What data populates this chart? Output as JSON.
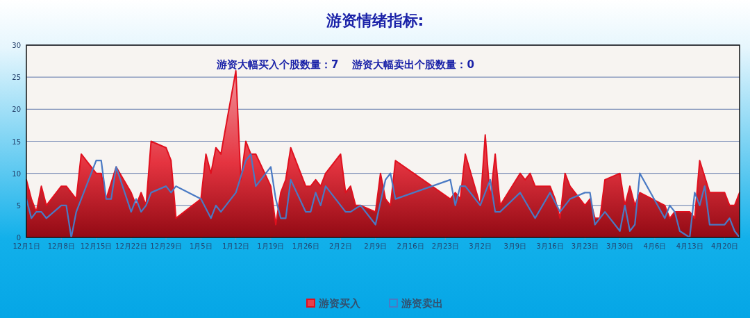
{
  "chart_data": {
    "type": "area",
    "title": "游资情绪指标:",
    "annotations": [
      "游资大幅买入个股数量：7",
      "游资大幅卖出个股数量：0"
    ],
    "categories": [
      "12月1日",
      null,
      null,
      null,
      null,
      null,
      null,
      "12月8日",
      null,
      null,
      null,
      null,
      null,
      null,
      "12月15日",
      null,
      null,
      null,
      null,
      null,
      null,
      "12月22日",
      null,
      null,
      null,
      null,
      null,
      null,
      "12月29日",
      null,
      null,
      null,
      null,
      null,
      null,
      "1月5日",
      null,
      null,
      null,
      null,
      null,
      null,
      "1月12日",
      null,
      null,
      null,
      null,
      null,
      null,
      "1月19日",
      null,
      null,
      null,
      null,
      null,
      null,
      "1月26日",
      null,
      null,
      null,
      null,
      null,
      null,
      "2月2日",
      null,
      null,
      null,
      null,
      null,
      null,
      "2月9日",
      null,
      null,
      null,
      null,
      null,
      null,
      "2月16日",
      null,
      null,
      null,
      null,
      null,
      null,
      "2月23日",
      null,
      null,
      null,
      null,
      null,
      null,
      "3月2日",
      null,
      null,
      null,
      null,
      null,
      null,
      "3月9日",
      null,
      null,
      null,
      null,
      null,
      null,
      "3月16日",
      null,
      null,
      null,
      null,
      null,
      null,
      "3月23日",
      null,
      null,
      null,
      null,
      null,
      null,
      "3月30日",
      null,
      null,
      null,
      null,
      null,
      null,
      "4月6日",
      null,
      null,
      null,
      null,
      null,
      null,
      "4月13日",
      null,
      null,
      null,
      null,
      null,
      null,
      "4月20日",
      null,
      null,
      null
    ],
    "ylim": [
      0,
      30
    ],
    "yticks": [
      0,
      5,
      10,
      15,
      20,
      25,
      30
    ],
    "grid": "y",
    "legend": "bottom",
    "series": [
      {
        "name": "游资买入",
        "color": "#e0101e",
        "values": [
          9,
          6,
          4,
          8,
          5,
          null,
          null,
          8,
          8,
          null,
          6,
          13,
          null,
          null,
          10,
          10,
          6,
          null,
          11,
          null,
          null,
          7,
          5,
          7,
          5,
          15,
          null,
          null,
          14,
          12,
          3,
          null,
          null,
          null,
          null,
          6,
          13,
          10,
          14,
          13,
          null,
          null,
          26,
          9,
          15,
          13,
          13,
          null,
          null,
          8,
          2,
          7,
          9,
          14,
          null,
          null,
          8,
          8,
          9,
          8,
          10,
          null,
          null,
          13,
          7,
          8,
          5,
          5,
          null,
          null,
          4,
          10,
          6,
          5,
          12,
          null,
          null,
          null,
          null,
          null,
          null,
          null,
          null,
          null,
          null,
          6,
          7,
          6,
          13,
          null,
          null,
          5,
          16,
          6,
          13,
          5,
          null,
          null,
          null,
          10,
          9,
          10,
          8,
          null,
          null,
          8,
          6,
          3,
          10,
          8,
          null,
          null,
          5,
          6,
          3,
          3,
          9,
          null,
          null,
          10,
          5,
          8,
          5,
          7,
          null,
          null,
          null,
          null,
          5,
          3,
          4,
          null,
          null,
          4,
          3,
          12,
          null,
          7,
          null,
          null,
          7,
          5,
          5,
          7
        ]
      },
      {
        "name": "游资卖出",
        "type": "line",
        "color": "#4a7ac4",
        "values": [
          6,
          3,
          4,
          4,
          3,
          null,
          null,
          5,
          5,
          0,
          4,
          null,
          null,
          null,
          12,
          12,
          6,
          6,
          11,
          null,
          null,
          4,
          6,
          4,
          5,
          7,
          null,
          null,
          8,
          7,
          8,
          null,
          null,
          null,
          null,
          6,
          null,
          3,
          5,
          4,
          null,
          null,
          7,
          null,
          12,
          13,
          8,
          null,
          null,
          11,
          6,
          3,
          3,
          9,
          null,
          null,
          4,
          4,
          7,
          5,
          8,
          null,
          null,
          null,
          4,
          4,
          null,
          5,
          null,
          null,
          2,
          null,
          9,
          10,
          6,
          null,
          null,
          null,
          null,
          null,
          null,
          null,
          null,
          null,
          null,
          9,
          5,
          8,
          8,
          null,
          null,
          5,
          null,
          9,
          4,
          4,
          null,
          null,
          null,
          7,
          null,
          null,
          3,
          null,
          null,
          7,
          null,
          4,
          null,
          6,
          null,
          null,
          7,
          7,
          2,
          null,
          4,
          null,
          null,
          1,
          5,
          1,
          2,
          10,
          null,
          null,
          null,
          null,
          3,
          5,
          4,
          1,
          null,
          0,
          7,
          5,
          8,
          2,
          null,
          null,
          2,
          3,
          1,
          0
        ]
      }
    ]
  }
}
